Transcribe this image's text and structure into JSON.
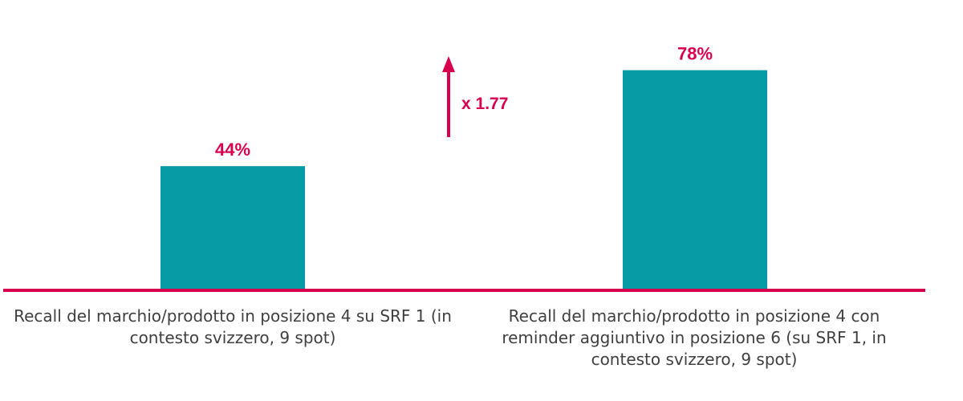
{
  "chart_data": {
    "type": "bar",
    "categories": [
      "Recall del marchio/prodotto in posizione 4 su SRF 1 (in\ncontesto svizzero, 9 spot)",
      "Recall del marchio/prodotto in posizione 4 con\nreminder aggiuntivo in posizione 6 (su SRF 1, in\ncontesto svizzero, 9 spot)"
    ],
    "values": [
      44,
      78
    ],
    "data_labels": [
      "44%",
      "78%"
    ],
    "annotation": "x 1.77",
    "ylim": [
      0,
      100
    ],
    "grid": false,
    "colors": {
      "bar": "#079ba6",
      "accent": "#d7004f",
      "label_text": "#3f3f3f"
    }
  }
}
